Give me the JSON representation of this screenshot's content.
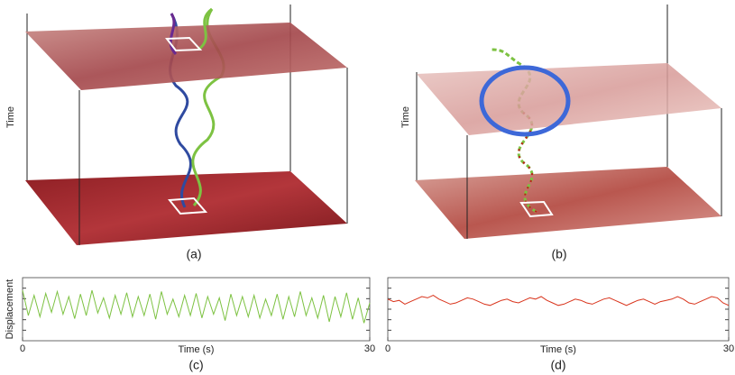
{
  "panels": [
    {
      "axis_label": "Time",
      "caption": "(a)"
    },
    {
      "axis_label": "Time",
      "caption": "(b)"
    }
  ],
  "plots": [
    {
      "type": "line",
      "caption": "(c)",
      "ylabel": "Displacement",
      "xlabel": "Time (s)",
      "xlim": [
        0,
        30
      ],
      "xticks": [
        0,
        30
      ],
      "ylim": [
        0,
        1
      ],
      "color": "#7dc242",
      "x": [
        0,
        0.5,
        1,
        1.5,
        2,
        2.5,
        3,
        3.5,
        4,
        4.5,
        5,
        5.5,
        6,
        6.5,
        7,
        7.5,
        8,
        8.5,
        9,
        9.5,
        10,
        10.5,
        11,
        11.5,
        12,
        12.5,
        13,
        13.5,
        14,
        14.5,
        15,
        15.5,
        16,
        16.5,
        17,
        17.5,
        18,
        18.5,
        19,
        19.5,
        20,
        20.5,
        21,
        21.5,
        22,
        22.5,
        23,
        23.5,
        24,
        24.5,
        25,
        25.5,
        26,
        26.5,
        27,
        27.5,
        28,
        28.5,
        29,
        29.5,
        30
      ],
      "values": [
        0.8,
        0.4,
        0.72,
        0.38,
        0.75,
        0.45,
        0.78,
        0.42,
        0.7,
        0.35,
        0.74,
        0.4,
        0.8,
        0.44,
        0.68,
        0.36,
        0.72,
        0.42,
        0.76,
        0.38,
        0.7,
        0.4,
        0.74,
        0.34,
        0.78,
        0.42,
        0.66,
        0.38,
        0.72,
        0.4,
        0.75,
        0.36,
        0.7,
        0.42,
        0.68,
        0.32,
        0.74,
        0.4,
        0.7,
        0.38,
        0.72,
        0.36,
        0.66,
        0.4,
        0.74,
        0.34,
        0.7,
        0.38,
        0.78,
        0.4,
        0.68,
        0.36,
        0.72,
        0.3,
        0.7,
        0.38,
        0.76,
        0.34,
        0.68,
        0.28,
        0.6
      ]
    },
    {
      "type": "line",
      "caption": "(d)",
      "xlabel": "Time (s)",
      "xlim": [
        0,
        30
      ],
      "xticks": [
        0,
        30
      ],
      "ylim": [
        0,
        1
      ],
      "color": "#d9341c",
      "x": [
        0,
        0.5,
        1,
        1.5,
        2,
        2.5,
        3,
        3.5,
        4,
        4.5,
        5,
        5.5,
        6,
        6.5,
        7,
        7.5,
        8,
        8.5,
        9,
        9.5,
        10,
        10.5,
        11,
        11.5,
        12,
        12.5,
        13,
        13.5,
        14,
        14.5,
        15,
        15.5,
        16,
        16.5,
        17,
        17.5,
        18,
        18.5,
        19,
        19.5,
        20,
        20.5,
        21,
        21.5,
        22,
        22.5,
        23,
        23.5,
        24,
        24.5,
        25,
        25.5,
        26,
        26.5,
        27,
        27.5,
        28,
        28.5,
        29,
        29.5,
        30
      ],
      "values": [
        0.66,
        0.62,
        0.64,
        0.58,
        0.62,
        0.66,
        0.7,
        0.68,
        0.72,
        0.66,
        0.62,
        0.58,
        0.6,
        0.64,
        0.68,
        0.66,
        0.62,
        0.58,
        0.56,
        0.6,
        0.64,
        0.66,
        0.62,
        0.6,
        0.64,
        0.68,
        0.66,
        0.7,
        0.64,
        0.6,
        0.56,
        0.58,
        0.62,
        0.66,
        0.64,
        0.6,
        0.58,
        0.62,
        0.66,
        0.68,
        0.64,
        0.6,
        0.56,
        0.6,
        0.64,
        0.66,
        0.62,
        0.58,
        0.62,
        0.64,
        0.66,
        0.7,
        0.66,
        0.6,
        0.58,
        0.62,
        0.66,
        0.7,
        0.68,
        0.6,
        0.56
      ]
    }
  ]
}
